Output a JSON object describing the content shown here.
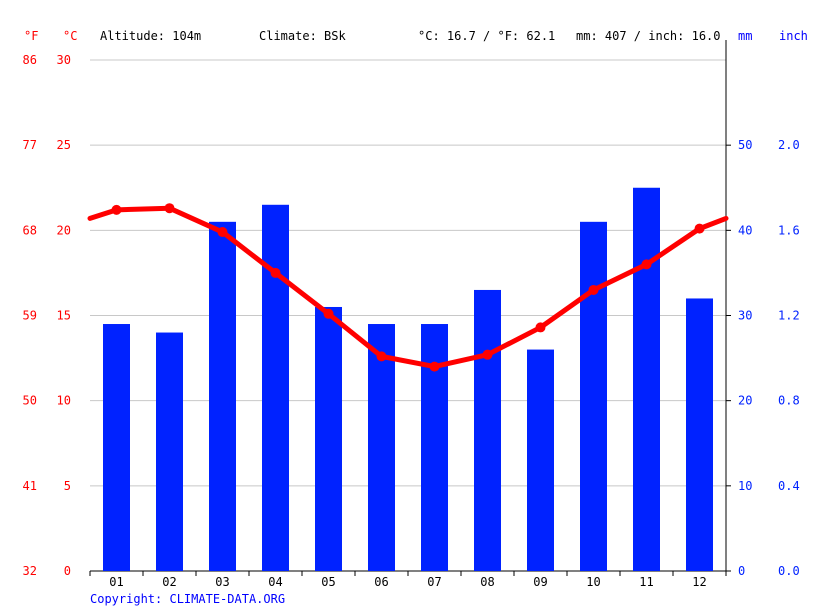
{
  "header": {
    "unit_f": "°F",
    "unit_c": "°C",
    "altitude": "Altitude: 104m",
    "climate": "Climate: BSk",
    "avg_temp": "°C: 16.7 / °F: 62.1",
    "precip_total": "mm: 407 / inch: 16.0",
    "unit_mm": "mm",
    "unit_inch": "inch"
  },
  "copyright": "Copyright: CLIMATE-DATA.ORG",
  "colors": {
    "temperature": "#ff0000",
    "precipitation": "#0022ff",
    "grid": "#c8c8c8"
  },
  "chart_data": {
    "type": "bar+line",
    "categories": [
      "01",
      "02",
      "03",
      "04",
      "05",
      "06",
      "07",
      "08",
      "09",
      "10",
      "11",
      "12"
    ],
    "series": [
      {
        "type": "bar",
        "unit": "mm",
        "axis": "right",
        "values": [
          29,
          28,
          41,
          43,
          31,
          29,
          29,
          33,
          26,
          41,
          45,
          32
        ]
      },
      {
        "type": "line",
        "unit": "°C",
        "axis": "left",
        "values": [
          21.2,
          21.3,
          19.9,
          17.5,
          15.1,
          12.6,
          12.0,
          12.7,
          14.3,
          16.5,
          18.0,
          20.1
        ],
        "edge_values": [
          20.7,
          20.7
        ]
      }
    ],
    "y_left_c": {
      "ticks": [
        0,
        5,
        10,
        15,
        20,
        25,
        30
      ],
      "range": [
        0,
        30
      ]
    },
    "y_left_f": {
      "ticks": [
        "32",
        "41",
        "50",
        "59",
        "68",
        "77",
        "86"
      ]
    },
    "y_right_mm": {
      "ticks": [
        "0",
        "10",
        "20",
        "30",
        "40",
        "50"
      ],
      "range": [
        0,
        60
      ]
    },
    "y_right_inch": {
      "ticks": [
        "0.0",
        "0.4",
        "0.8",
        "1.2",
        "1.6",
        "2.0"
      ]
    },
    "grid": true
  }
}
